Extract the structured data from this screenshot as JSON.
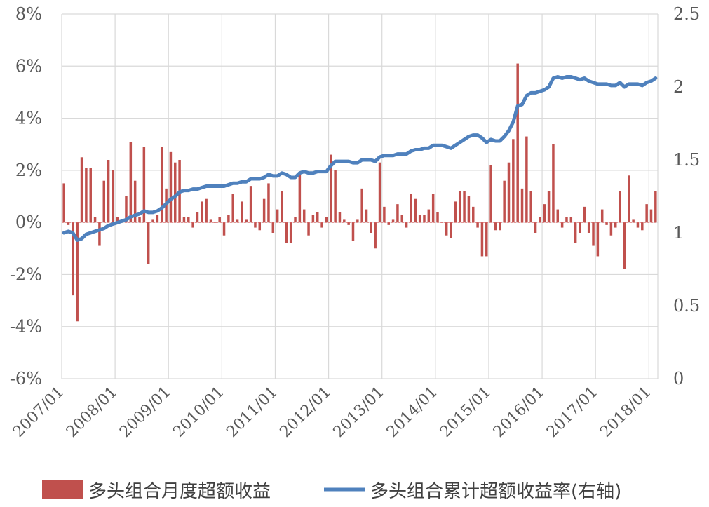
{
  "chart_data": {
    "type": "bar+line",
    "colors": {
      "bar": "#c0504d",
      "line": "#4f81bd",
      "grid": "#d9d9d9",
      "zero_line": "#e06666"
    },
    "y_left": {
      "ylim": [
        -6,
        8
      ],
      "ticks": [
        "-6%",
        "-4%",
        "-2%",
        "0%",
        "2%",
        "4%",
        "6%",
        "8%"
      ],
      "tick_values": [
        -6,
        -4,
        -2,
        0,
        2,
        4,
        6,
        8
      ]
    },
    "y_right": {
      "ylim": [
        0,
        2.5
      ],
      "ticks": [
        "0",
        "0.5",
        "1",
        "1.5",
        "2",
        "2.5"
      ],
      "tick_values": [
        0,
        0.5,
        1,
        1.5,
        2,
        2.5
      ]
    },
    "x_tick_labels": [
      "2007/01",
      "2008/01",
      "2009/01",
      "2010/01",
      "2011/01",
      "2012/01",
      "2013/01",
      "2014/01",
      "2015/01",
      "2016/01",
      "2017/01",
      "2018/01"
    ],
    "grid": true,
    "legend_position": "bottom",
    "series": [
      {
        "name": "多头组合月度超额收益",
        "type": "bar",
        "axis": "left",
        "unit": "%",
        "values": [
          1.5,
          -0.1,
          -2.8,
          -3.8,
          2.5,
          2.1,
          2.1,
          0.2,
          -0.9,
          1.6,
          2.4,
          2.0,
          0.2,
          0.1,
          1.0,
          3.1,
          1.6,
          0.2,
          2.9,
          -1.6,
          0.1,
          0.3,
          2.9,
          1.3,
          2.7,
          2.3,
          2.4,
          0.2,
          0.2,
          -0.2,
          0.4,
          0.8,
          0.9,
          0.1,
          0.0,
          0.2,
          -0.5,
          0.3,
          1.1,
          0.1,
          0.8,
          0.1,
          1.4,
          -0.2,
          -0.3,
          0.9,
          1.5,
          -0.4,
          0.5,
          1.2,
          -0.8,
          -0.8,
          0.2,
          1.9,
          0.5,
          -0.5,
          0.3,
          0.4,
          -0.2,
          0.2,
          2.6,
          2.0,
          0.4,
          0.1,
          -0.1,
          -0.7,
          0.1,
          1.3,
          0.5,
          -0.4,
          -1.0,
          2.3,
          0.6,
          -0.1,
          0.1,
          0.7,
          0.3,
          -0.2,
          1.1,
          0.9,
          0.3,
          0.3,
          0.5,
          1.1,
          0.4,
          0.0,
          -0.5,
          -0.6,
          0.8,
          1.2,
          1.2,
          1.0,
          0.6,
          -0.2,
          -1.3,
          -1.3,
          2.2,
          -0.3,
          -0.3,
          1.6,
          2.3,
          3.2,
          6.1,
          1.3,
          3.3,
          1.2,
          -0.4,
          0.2,
          0.7,
          1.2,
          3.0,
          0.5,
          -0.2,
          0.2,
          0.2,
          -0.8,
          -0.4,
          0.6,
          -0.4,
          -0.9,
          -1.3,
          0.5,
          -0.1,
          -0.5,
          -0.2,
          1.2,
          -1.8,
          1.8,
          0.1,
          -0.2,
          -0.3,
          0.7,
          0.5,
          1.2
        ]
      },
      {
        "name": "多头组合累计超额收益率(右轴)",
        "type": "line",
        "axis": "right",
        "values": [
          1.0,
          1.01,
          1.0,
          0.95,
          0.96,
          0.99,
          1.0,
          1.01,
          1.02,
          1.03,
          1.05,
          1.06,
          1.07,
          1.08,
          1.09,
          1.11,
          1.12,
          1.13,
          1.15,
          1.14,
          1.14,
          1.15,
          1.17,
          1.2,
          1.23,
          1.25,
          1.28,
          1.29,
          1.29,
          1.3,
          1.3,
          1.31,
          1.32,
          1.32,
          1.32,
          1.32,
          1.32,
          1.33,
          1.34,
          1.34,
          1.35,
          1.35,
          1.37,
          1.37,
          1.37,
          1.38,
          1.4,
          1.39,
          1.39,
          1.41,
          1.4,
          1.38,
          1.38,
          1.41,
          1.42,
          1.41,
          1.41,
          1.42,
          1.42,
          1.42,
          1.46,
          1.49,
          1.49,
          1.49,
          1.49,
          1.48,
          1.48,
          1.5,
          1.5,
          1.5,
          1.49,
          1.52,
          1.53,
          1.53,
          1.53,
          1.54,
          1.54,
          1.54,
          1.56,
          1.57,
          1.57,
          1.58,
          1.58,
          1.6,
          1.6,
          1.6,
          1.59,
          1.58,
          1.6,
          1.62,
          1.64,
          1.66,
          1.67,
          1.67,
          1.65,
          1.62,
          1.64,
          1.63,
          1.63,
          1.66,
          1.7,
          1.76,
          1.87,
          1.88,
          1.94,
          1.96,
          1.96,
          1.97,
          1.98,
          2.0,
          2.06,
          2.07,
          2.06,
          2.07,
          2.07,
          2.06,
          2.05,
          2.06,
          2.04,
          2.03,
          2.02,
          2.02,
          2.02,
          2.01,
          2.01,
          2.03,
          2.0,
          2.02,
          2.02,
          2.02,
          2.01,
          2.03,
          2.04,
          2.06
        ]
      }
    ]
  }
}
